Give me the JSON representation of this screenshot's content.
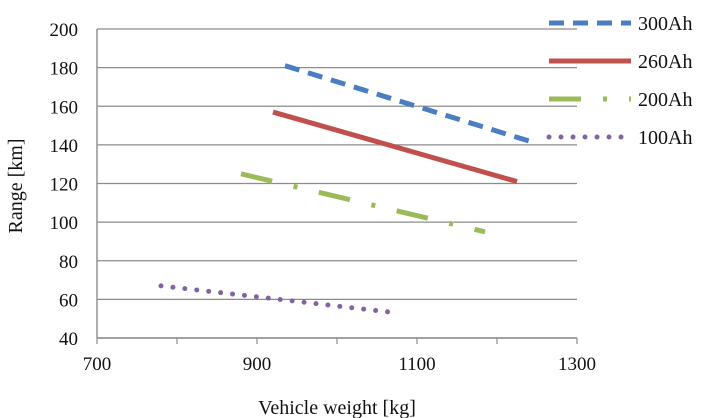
{
  "chart_data": {
    "type": "line",
    "title": "",
    "xlabel": "Vehicle weight [kg]",
    "ylabel": "Range [km]",
    "xlim": [
      700,
      1300
    ],
    "ylim": [
      40,
      200
    ],
    "xticks": [
      "700",
      "900",
      "1100",
      "1300"
    ],
    "yticks": [
      "200",
      "180",
      "160",
      "140",
      "120",
      "100",
      "80",
      "60",
      "40"
    ],
    "grid": "horizontal",
    "legend_position": "right",
    "series": [
      {
        "name": "300Ah",
        "color": "#4a7ec0",
        "dash": "dashed",
        "x": [
          935,
          1240
        ],
        "y": [
          181,
          142
        ]
      },
      {
        "name": "260Ah",
        "color": "#c0504d",
        "dash": "solid",
        "x": [
          920,
          1225
        ],
        "y": [
          157,
          121
        ]
      },
      {
        "name": "200Ah",
        "color": "#9bbb59",
        "dash": "dash-dot",
        "x": [
          880,
          1185
        ],
        "y": [
          125,
          95
        ]
      },
      {
        "name": "100Ah",
        "color": "#8064a2",
        "dash": "dotted",
        "x": [
          780,
          1075
        ],
        "y": [
          67,
          53
        ]
      }
    ]
  }
}
